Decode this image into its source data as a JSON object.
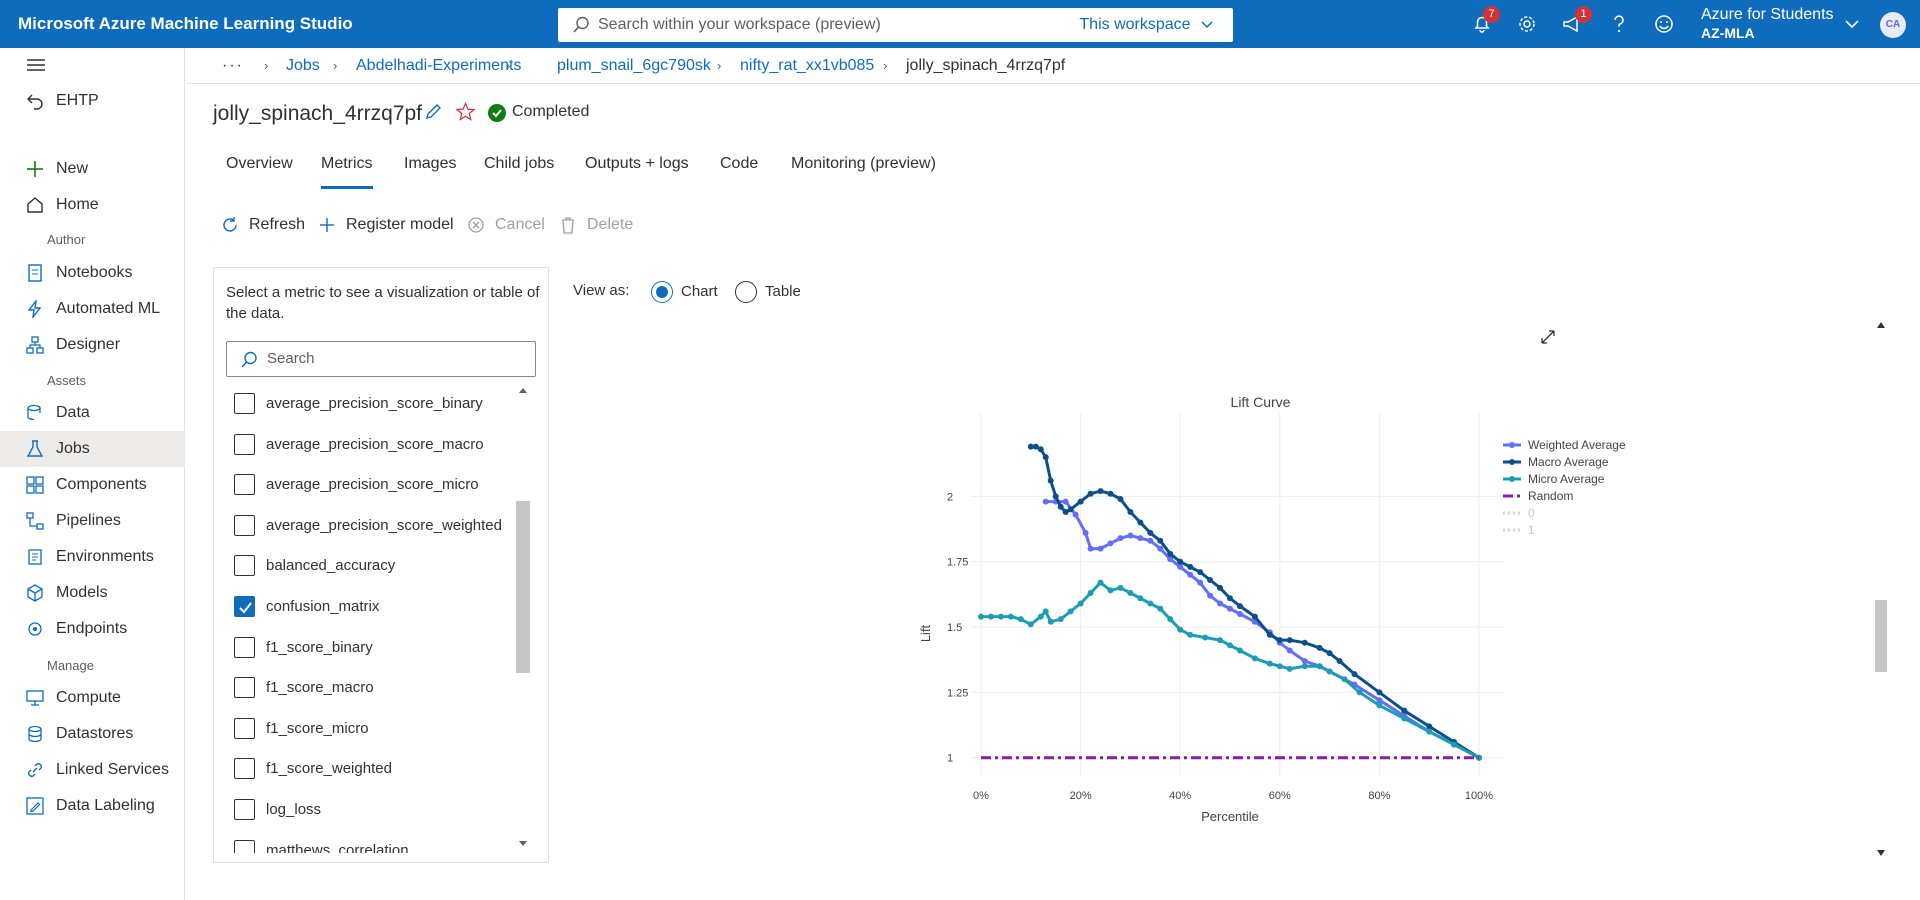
{
  "app": {
    "title": "Microsoft Azure Machine Learning Studio",
    "search_placeholder": "Search within your workspace (preview)",
    "search_scope": "This workspace",
    "notifications_count": "7",
    "announcements_count": "1",
    "account_name": "Azure for Students",
    "account_org": "AZ-MLA",
    "avatar_initials": "CA"
  },
  "sidebar": {
    "workspace": "EHTP",
    "items": [
      {
        "label": "New",
        "icon": "plus-icon"
      },
      {
        "label": "Home",
        "icon": "home-icon"
      }
    ],
    "author_label": "Author",
    "author": [
      {
        "label": "Notebooks",
        "icon": "notebook-icon"
      },
      {
        "label": "Automated ML",
        "icon": "bolt-icon"
      },
      {
        "label": "Designer",
        "icon": "designer-icon"
      }
    ],
    "assets_label": "Assets",
    "assets": [
      {
        "label": "Data",
        "icon": "data-icon"
      },
      {
        "label": "Jobs",
        "icon": "flask-icon"
      },
      {
        "label": "Components",
        "icon": "components-icon"
      },
      {
        "label": "Pipelines",
        "icon": "pipeline-icon"
      },
      {
        "label": "Environments",
        "icon": "environment-icon"
      },
      {
        "label": "Models",
        "icon": "cube-icon"
      },
      {
        "label": "Endpoints",
        "icon": "endpoint-icon"
      }
    ],
    "manage_label": "Manage",
    "manage": [
      {
        "label": "Compute",
        "icon": "compute-icon"
      },
      {
        "label": "Datastores",
        "icon": "database-icon"
      },
      {
        "label": "Linked Services",
        "icon": "link-icon"
      },
      {
        "label": "Data Labeling",
        "icon": "label-icon"
      }
    ]
  },
  "breadcrumb": [
    "Jobs",
    "Abdelhadi-Experiments",
    "plum_snail_6gc790sk",
    "nifty_rat_xx1vb085",
    "jolly_spinach_4rrzq7pf"
  ],
  "job": {
    "name": "jolly_spinach_4rrzq7pf",
    "status": "Completed"
  },
  "tabs": [
    "Overview",
    "Metrics",
    "Images",
    "Child jobs",
    "Outputs + logs",
    "Code",
    "Monitoring (preview)"
  ],
  "toolbar": {
    "refresh": "Refresh",
    "register": "Register model",
    "cancel": "Cancel",
    "delete": "Delete"
  },
  "metrics": {
    "description": "Select a metric to see a visualization or table of the data.",
    "search_placeholder": "Search",
    "items": [
      {
        "label": "average_precision_score_binary",
        "checked": false
      },
      {
        "label": "average_precision_score_macro",
        "checked": false
      },
      {
        "label": "average_precision_score_micro",
        "checked": false
      },
      {
        "label": "average_precision_score_weighted",
        "checked": false
      },
      {
        "label": "balanced_accuracy",
        "checked": false
      },
      {
        "label": "confusion_matrix",
        "checked": true
      },
      {
        "label": "f1_score_binary",
        "checked": false
      },
      {
        "label": "f1_score_macro",
        "checked": false
      },
      {
        "label": "f1_score_micro",
        "checked": false
      },
      {
        "label": "f1_score_weighted",
        "checked": false
      },
      {
        "label": "log_loss",
        "checked": false
      },
      {
        "label": "matthews_correlation",
        "checked": false
      }
    ]
  },
  "view": {
    "label": "View as:",
    "options": [
      "Chart",
      "Table"
    ],
    "selected": "Chart"
  },
  "chart_data": {
    "type": "line",
    "title": "Lift Curve",
    "xlabel": "Percentile",
    "ylabel": "Lift",
    "xlim": [
      0,
      100
    ],
    "ylim": [
      0.93,
      2.25
    ],
    "xticks": [
      0,
      20,
      40,
      60,
      80,
      100
    ],
    "xtick_labels": [
      "0%",
      "20%",
      "40%",
      "60%",
      "80%",
      "100%"
    ],
    "yticks": [
      1,
      1.25,
      1.5,
      1.75,
      2
    ],
    "ytick_labels": [
      "1",
      "1.25",
      "1.5",
      "1.75",
      "2"
    ],
    "legend_position": "top-right",
    "grid": true,
    "series": [
      {
        "name": "Weighted Average",
        "color": "#636efa",
        "dash": "solid",
        "points": [
          [
            13,
            1.98
          ],
          [
            15,
            1.98
          ],
          [
            17,
            1.98
          ],
          [
            19,
            1.93
          ],
          [
            21,
            1.86
          ],
          [
            22,
            1.8
          ],
          [
            24,
            1.8
          ],
          [
            26,
            1.82
          ],
          [
            28,
            1.84
          ],
          [
            30,
            1.85
          ],
          [
            32,
            1.84
          ],
          [
            34,
            1.83
          ],
          [
            36,
            1.8
          ],
          [
            38,
            1.76
          ],
          [
            40,
            1.73
          ],
          [
            42,
            1.7
          ],
          [
            44,
            1.67
          ],
          [
            46,
            1.62
          ],
          [
            48,
            1.59
          ],
          [
            50,
            1.57
          ],
          [
            52,
            1.55
          ],
          [
            55,
            1.52
          ],
          [
            58,
            1.48
          ],
          [
            60,
            1.44
          ],
          [
            62,
            1.41
          ],
          [
            65,
            1.37
          ],
          [
            68,
            1.35
          ],
          [
            70,
            1.33
          ],
          [
            75,
            1.28
          ],
          [
            80,
            1.22
          ],
          [
            85,
            1.16
          ],
          [
            90,
            1.1
          ],
          [
            95,
            1.05
          ],
          [
            100,
            1.0
          ]
        ]
      },
      {
        "name": "Macro Average",
        "color": "#0b4f8a",
        "dash": "solid",
        "points": [
          [
            10,
            2.19
          ],
          [
            11,
            2.19
          ],
          [
            12,
            2.18
          ],
          [
            13,
            2.15
          ],
          [
            14,
            2.06
          ],
          [
            15,
            2.0
          ],
          [
            16,
            1.96
          ],
          [
            17,
            1.94
          ],
          [
            18,
            1.95
          ],
          [
            20,
            1.98
          ],
          [
            22,
            2.01
          ],
          [
            24,
            2.02
          ],
          [
            26,
            2.01
          ],
          [
            28,
            1.99
          ],
          [
            30,
            1.94
          ],
          [
            32,
            1.9
          ],
          [
            34,
            1.86
          ],
          [
            36,
            1.83
          ],
          [
            38,
            1.78
          ],
          [
            40,
            1.75
          ],
          [
            42,
            1.73
          ],
          [
            44,
            1.71
          ],
          [
            46,
            1.68
          ],
          [
            48,
            1.65
          ],
          [
            50,
            1.61
          ],
          [
            52,
            1.58
          ],
          [
            55,
            1.54
          ],
          [
            58,
            1.47
          ],
          [
            60,
            1.45
          ],
          [
            62,
            1.45
          ],
          [
            65,
            1.44
          ],
          [
            68,
            1.42
          ],
          [
            70,
            1.4
          ],
          [
            72,
            1.37
          ],
          [
            75,
            1.32
          ],
          [
            80,
            1.25
          ],
          [
            85,
            1.18
          ],
          [
            90,
            1.12
          ],
          [
            95,
            1.06
          ],
          [
            100,
            1.0
          ]
        ]
      },
      {
        "name": "Micro Average",
        "color": "#1c9cb5",
        "dash": "solid",
        "points": [
          [
            0,
            1.54
          ],
          [
            2,
            1.54
          ],
          [
            4,
            1.54
          ],
          [
            6,
            1.54
          ],
          [
            8,
            1.53
          ],
          [
            10,
            1.51
          ],
          [
            12,
            1.54
          ],
          [
            13,
            1.56
          ],
          [
            14,
            1.52
          ],
          [
            16,
            1.53
          ],
          [
            18,
            1.56
          ],
          [
            20,
            1.59
          ],
          [
            22,
            1.63
          ],
          [
            24,
            1.67
          ],
          [
            26,
            1.64
          ],
          [
            28,
            1.65
          ],
          [
            30,
            1.63
          ],
          [
            32,
            1.61
          ],
          [
            34,
            1.59
          ],
          [
            36,
            1.57
          ],
          [
            38,
            1.53
          ],
          [
            40,
            1.49
          ],
          [
            42,
            1.47
          ],
          [
            45,
            1.46
          ],
          [
            48,
            1.45
          ],
          [
            50,
            1.43
          ],
          [
            52,
            1.41
          ],
          [
            55,
            1.38
          ],
          [
            58,
            1.36
          ],
          [
            60,
            1.35
          ],
          [
            62,
            1.34
          ],
          [
            65,
            1.35
          ],
          [
            68,
            1.35
          ],
          [
            70,
            1.33
          ],
          [
            73,
            1.3
          ],
          [
            76,
            1.25
          ],
          [
            80,
            1.2
          ],
          [
            85,
            1.15
          ],
          [
            90,
            1.1
          ],
          [
            95,
            1.05
          ],
          [
            100,
            1.0
          ]
        ]
      },
      {
        "name": "Random",
        "color": "#8c1aa6",
        "dash": "dashdot",
        "points": [
          [
            0,
            1
          ],
          [
            100,
            1
          ]
        ]
      },
      {
        "name": "0",
        "color": "#d0d0d0",
        "dash": "dot",
        "points": []
      },
      {
        "name": "1",
        "color": "#d0d0d0",
        "dash": "dot",
        "points": []
      }
    ]
  }
}
